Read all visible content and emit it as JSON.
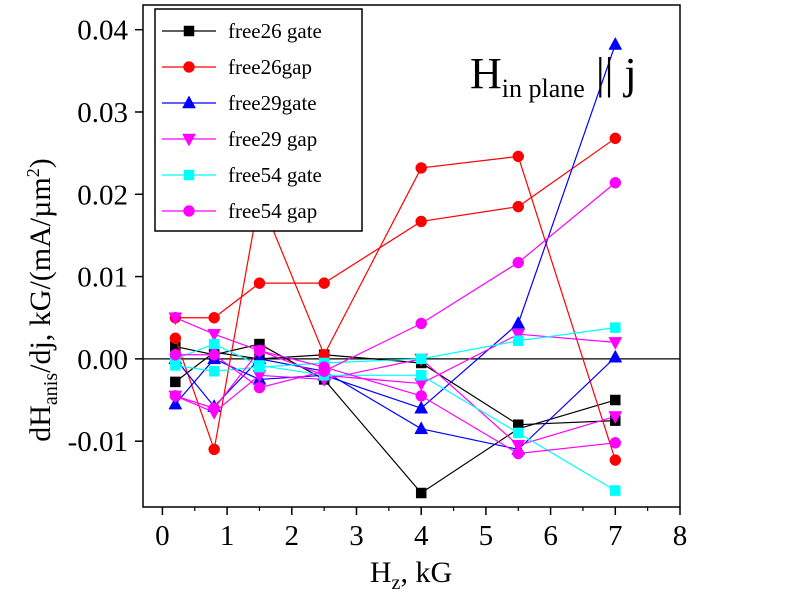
{
  "chart_data": {
    "type": "line",
    "annotation": {
      "main": "H",
      "sub": "in plane",
      "rest": " || j"
    },
    "xlabel": {
      "main": "H",
      "sub": "z",
      "rest": ", kG"
    },
    "ylabel": {
      "main": "dH",
      "sub": "anis",
      "mid": "/dj, kG/(mA/µm",
      "sup": "2",
      "end": ")"
    },
    "xlim": [
      -0.3,
      8
    ],
    "ylim": [
      -0.018,
      0.043
    ],
    "xticks": [
      0,
      1,
      2,
      3,
      4,
      5,
      6,
      7,
      8
    ],
    "yticks": [
      -0.01,
      0.0,
      0.01,
      0.02,
      0.03,
      0.04
    ],
    "ytick_labels": [
      "-0.01",
      "0.00",
      "0.01",
      "0.02",
      "0.03",
      "0.04"
    ],
    "legend_position": "top-left",
    "zero_line": true,
    "series": [
      {
        "name": "free26 gate",
        "color": "#000000",
        "marker": "square",
        "curves": [
          [
            [
              0.2,
              0.0015
            ],
            [
              0.8,
              0.0005
            ],
            [
              1.5,
              0.0018
            ],
            [
              2.5,
              -0.0025
            ],
            [
              4,
              -0.0163
            ],
            [
              5.5,
              -0.0085
            ],
            [
              7,
              -0.005
            ]
          ],
          [
            [
              0.2,
              -0.0028
            ],
            [
              0.8,
              0.0008
            ],
            [
              1.5,
              0.0
            ],
            [
              2.5,
              0.0005
            ],
            [
              4,
              -0.0005
            ],
            [
              5.5,
              -0.008
            ],
            [
              7,
              -0.0075
            ]
          ]
        ]
      },
      {
        "name": "free26gap",
        "color": "#ff0000",
        "marker": "circle",
        "curves": [
          [
            [
              0.2,
              0.0025
            ],
            [
              0.8,
              -0.011
            ],
            [
              1.5,
              0.0197
            ],
            [
              2.5,
              0.0005
            ],
            [
              4,
              0.0232
            ],
            [
              5.5,
              0.0246
            ],
            [
              7,
              -0.0123
            ]
          ],
          [
            [
              0.2,
              0.005
            ],
            [
              0.8,
              0.005
            ],
            [
              1.5,
              0.0092
            ],
            [
              2.5,
              0.0092
            ],
            [
              4,
              0.0167
            ],
            [
              5.5,
              0.0185
            ],
            [
              7,
              0.0268
            ]
          ]
        ]
      },
      {
        "name": "free29gate",
        "color": "#0000ff",
        "marker": "triangle-up",
        "curves": [
          [
            [
              0.2,
              -0.0055
            ],
            [
              0.8,
              0.0
            ],
            [
              1.5,
              -0.0025
            ],
            [
              2.5,
              -0.002
            ],
            [
              4,
              -0.006
            ],
            [
              5.5,
              0.0043
            ],
            [
              7,
              0.0382
            ]
          ],
          [
            [
              0.2,
              0.0
            ],
            [
              0.8,
              -0.0058
            ],
            [
              1.5,
              0.0
            ],
            [
              2.5,
              -0.0015
            ],
            [
              4,
              -0.0085
            ],
            [
              5.5,
              -0.011
            ],
            [
              7,
              0.0002
            ]
          ]
        ]
      },
      {
        "name": "free29 gap",
        "color": "#ff00ff",
        "marker": "triangle-down",
        "curves": [
          [
            [
              0.2,
              0.005
            ],
            [
              0.8,
              0.003
            ],
            [
              1.5,
              0.001
            ],
            [
              2.5,
              -0.002
            ],
            [
              4,
              -0.003
            ],
            [
              5.5,
              0.003
            ],
            [
              7,
              0.002
            ]
          ],
          [
            [
              0.2,
              -0.0045
            ],
            [
              0.8,
              -0.0065
            ],
            [
              1.5,
              -0.002
            ],
            [
              2.5,
              -0.0025
            ],
            [
              4,
              0.0
            ],
            [
              5.5,
              -0.0105
            ],
            [
              7,
              -0.007
            ]
          ]
        ]
      },
      {
        "name": "free54 gate",
        "color": "#00ffff",
        "marker": "square",
        "curves": [
          [
            [
              0.2,
              -0.0008
            ],
            [
              0.8,
              -0.0015
            ],
            [
              1.5,
              -0.001
            ],
            [
              2.5,
              -0.0005
            ],
            [
              4,
              0.0
            ],
            [
              5.5,
              0.0022
            ],
            [
              7,
              0.0038
            ]
          ],
          [
            [
              0.2,
              0.0
            ],
            [
              0.8,
              0.0018
            ],
            [
              1.5,
              -0.0008
            ],
            [
              2.5,
              -0.002
            ],
            [
              4,
              -0.002
            ],
            [
              5.5,
              -0.009
            ],
            [
              7,
              -0.016
            ]
          ]
        ]
      },
      {
        "name": "free54 gap",
        "color": "#ff00ff",
        "marker": "circle",
        "curves": [
          [
            [
              0.2,
              0.0005
            ],
            [
              0.8,
              0.0005
            ],
            [
              1.5,
              -0.0035
            ],
            [
              2.5,
              -0.0015
            ],
            [
              4,
              0.0043
            ],
            [
              5.5,
              0.0117
            ],
            [
              7,
              0.0214
            ]
          ],
          [
            [
              0.2,
              -0.0045
            ],
            [
              0.8,
              -0.006
            ],
            [
              1.5,
              0.001
            ],
            [
              2.5,
              -0.001
            ],
            [
              4,
              -0.0045
            ],
            [
              5.5,
              -0.0115
            ],
            [
              7,
              -0.0102
            ]
          ]
        ]
      }
    ]
  }
}
